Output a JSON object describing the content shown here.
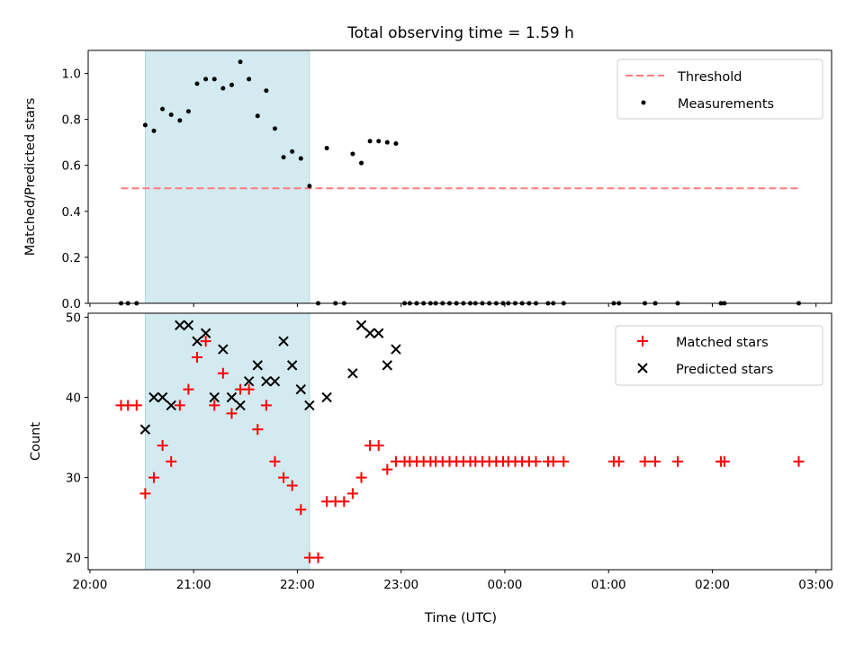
{
  "chart_data": [
    {
      "type": "scatter",
      "title": "Total observing time = 1.59 h",
      "xlabel": "",
      "ylabel": "Matched/Predicted stars",
      "ylim": [
        0,
        1.1
      ],
      "yticks": [
        "0.0",
        "0.2",
        "0.4",
        "0.6",
        "0.8",
        "1.0"
      ],
      "ytick_values": [
        0,
        0.2,
        0.4,
        0.6,
        0.8,
        1.0
      ],
      "x_axis": "time",
      "xlim": [
        "19:59",
        "03:09"
      ],
      "highlight_span": [
        "20:32",
        "22:07"
      ],
      "highlight_color": "#d3eaf0",
      "grid": false,
      "legend_position": "upper right",
      "series": [
        {
          "name": "Threshold",
          "kind": "dashed-line",
          "color": "#ff7b7b",
          "x": [
            "20:18",
            "02:50"
          ],
          "y": [
            0.5,
            0.5
          ]
        },
        {
          "name": "Measurements",
          "kind": "dot",
          "color": "#000000",
          "x": [
            "20:18",
            "20:22",
            "20:27",
            "20:32",
            "20:37",
            "20:42",
            "20:47",
            "20:52",
            "20:57",
            "21:02",
            "21:07",
            "21:12",
            "21:17",
            "21:22",
            "21:27",
            "21:32",
            "21:37",
            "21:42",
            "21:47",
            "21:52",
            "21:57",
            "22:02",
            "22:07",
            "22:12",
            "22:17",
            "22:22",
            "22:27",
            "22:32",
            "22:37",
            "22:42",
            "22:47",
            "22:52",
            "22:57",
            "23:02",
            "23:05",
            "23:09",
            "23:13",
            "23:17",
            "23:20",
            "23:24",
            "23:28",
            "23:32",
            "23:36",
            "23:40",
            "23:43",
            "23:47",
            "23:51",
            "23:55",
            "23:59",
            "00:02",
            "00:06",
            "00:10",
            "00:14",
            "00:18",
            "00:25",
            "00:28",
            "00:34",
            "01:03",
            "01:06",
            "01:21",
            "01:27",
            "01:40",
            "02:05",
            "02:07",
            "02:50"
          ],
          "y": [
            0,
            0,
            0,
            0.775,
            0.75,
            0.845,
            0.82,
            0.795,
            0.835,
            0.955,
            0.975,
            0.975,
            0.935,
            0.95,
            1.05,
            0.975,
            0.815,
            0.925,
            0.76,
            0.635,
            0.66,
            0.63,
            0.51,
            0,
            0.675,
            0,
            0,
            0.65,
            0.61,
            0.705,
            0.705,
            0.7,
            0.695,
            0,
            0,
            0,
            0,
            0,
            0,
            0,
            0,
            0,
            0,
            0,
            0,
            0,
            0,
            0,
            0,
            0,
            0,
            0,
            0,
            0,
            0,
            0,
            0,
            0,
            0,
            0,
            0,
            0,
            0,
            0,
            0
          ]
        }
      ]
    },
    {
      "type": "scatter",
      "title": "",
      "xlabel": "Time (UTC)",
      "ylabel": "Count",
      "ylim": [
        18.5,
        50.5
      ],
      "yticks": [
        "20",
        "30",
        "40",
        "50"
      ],
      "ytick_values": [
        20,
        30,
        40,
        50
      ],
      "x_axis": "time",
      "xlim": [
        "19:59",
        "03:09"
      ],
      "xticks": [
        "20:00",
        "21:00",
        "22:00",
        "23:00",
        "00:00",
        "01:00",
        "02:00",
        "03:00"
      ],
      "xtick_positions": [
        "20:00",
        "21:00",
        "22:00",
        "23:00",
        "00:00",
        "01:00",
        "02:00",
        "03:00"
      ],
      "highlight_span": [
        "20:32",
        "22:07"
      ],
      "highlight_color": "#d3eaf0",
      "grid": false,
      "legend_position": "upper right",
      "series": [
        {
          "name": "Matched stars",
          "kind": "plus",
          "color": "#ff0000",
          "x": [
            "20:18",
            "20:22",
            "20:27",
            "20:32",
            "20:37",
            "20:42",
            "20:47",
            "20:52",
            "20:57",
            "21:02",
            "21:07",
            "21:12",
            "21:17",
            "21:22",
            "21:27",
            "21:32",
            "21:37",
            "21:42",
            "21:47",
            "21:52",
            "21:57",
            "22:02",
            "22:07",
            "22:12",
            "22:17",
            "22:22",
            "22:27",
            "22:32",
            "22:37",
            "22:42",
            "22:47",
            "22:52",
            "22:57",
            "23:02",
            "23:05",
            "23:09",
            "23:13",
            "23:17",
            "23:20",
            "23:24",
            "23:28",
            "23:32",
            "23:36",
            "23:40",
            "23:43",
            "23:47",
            "23:51",
            "23:55",
            "23:59",
            "00:02",
            "00:06",
            "00:10",
            "00:14",
            "00:18",
            "00:25",
            "00:28",
            "00:34",
            "01:03",
            "01:06",
            "01:21",
            "01:27",
            "01:40",
            "02:05",
            "02:07",
            "02:50"
          ],
          "y": [
            39,
            39,
            39,
            28,
            30,
            34,
            32,
            39,
            41,
            45,
            47,
            39,
            43,
            38,
            41,
            41,
            36,
            39,
            32,
            30,
            29,
            26,
            20,
            20,
            27,
            27,
            27,
            28,
            30,
            34,
            34,
            31,
            32,
            32,
            32,
            32,
            32,
            32,
            32,
            32,
            32,
            32,
            32,
            32,
            32,
            32,
            32,
            32,
            32,
            32,
            32,
            32,
            32,
            32,
            32,
            32,
            32,
            32,
            32,
            32,
            32,
            32,
            32,
            32,
            32
          ]
        },
        {
          "name": "Predicted stars",
          "kind": "x",
          "color": "#000000",
          "x": [
            "20:32",
            "20:37",
            "20:42",
            "20:47",
            "20:52",
            "20:57",
            "21:02",
            "21:07",
            "21:12",
            "21:17",
            "21:22",
            "21:27",
            "21:32",
            "21:37",
            "21:42",
            "21:47",
            "21:52",
            "21:57",
            "22:02",
            "22:07",
            "22:17",
            "22:32",
            "22:37",
            "22:42",
            "22:47",
            "22:52",
            "22:57"
          ],
          "y": [
            36,
            40,
            40,
            39,
            49,
            49,
            47,
            48,
            40,
            46,
            40,
            39,
            42,
            44,
            42,
            42,
            47,
            44,
            41,
            39,
            40,
            43,
            49,
            48,
            48,
            44,
            46
          ]
        }
      ]
    }
  ]
}
